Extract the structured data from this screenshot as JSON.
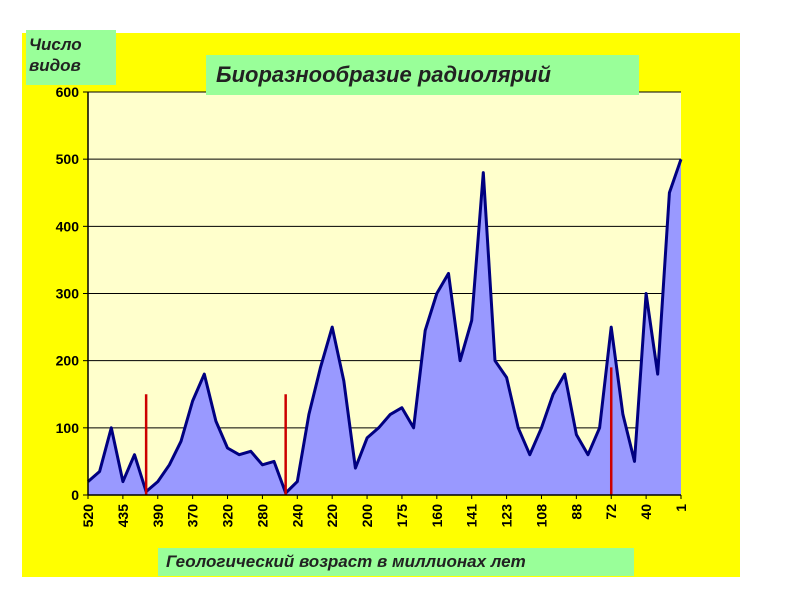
{
  "chart_data": {
    "type": "area",
    "title": "Биоразнообразие радиолярий",
    "ylabel": "Число\nвидов",
    "xlabel": "Геологический возраст в миллионах лет",
    "ylim": [
      0,
      600
    ],
    "yticks": [
      "0",
      "100",
      "200",
      "300",
      "400",
      "500",
      "600"
    ],
    "xticks": [
      "520",
      "435",
      "390",
      "370",
      "320",
      "280",
      "240",
      "220",
      "200",
      "175",
      "160",
      "141",
      "123",
      "108",
      "88",
      "72",
      "40",
      "1"
    ],
    "grid": true,
    "series": [
      {
        "values": [
          20,
          35,
          100,
          20,
          60,
          5,
          20,
          45,
          80,
          140,
          180,
          110,
          70,
          60,
          65,
          45,
          50,
          3,
          20,
          120,
          190,
          250,
          170,
          40,
          85,
          100,
          120,
          130,
          100,
          245,
          300,
          330,
          200,
          260,
          480,
          200,
          175,
          100,
          60,
          100,
          150,
          180,
          90,
          60,
          100,
          250,
          120,
          50,
          300,
          180,
          450,
          500
        ],
        "fill": "#9999ff",
        "stroke": "#000080"
      }
    ],
    "markers": [
      {
        "x_index": 5,
        "y": 150
      },
      {
        "x_index": 17,
        "y": 150
      },
      {
        "x_index": 45,
        "y": 190
      }
    ],
    "marker_color": "#cc0000",
    "plot_background": "#ffffcc",
    "frame_color": "#ffff00"
  }
}
